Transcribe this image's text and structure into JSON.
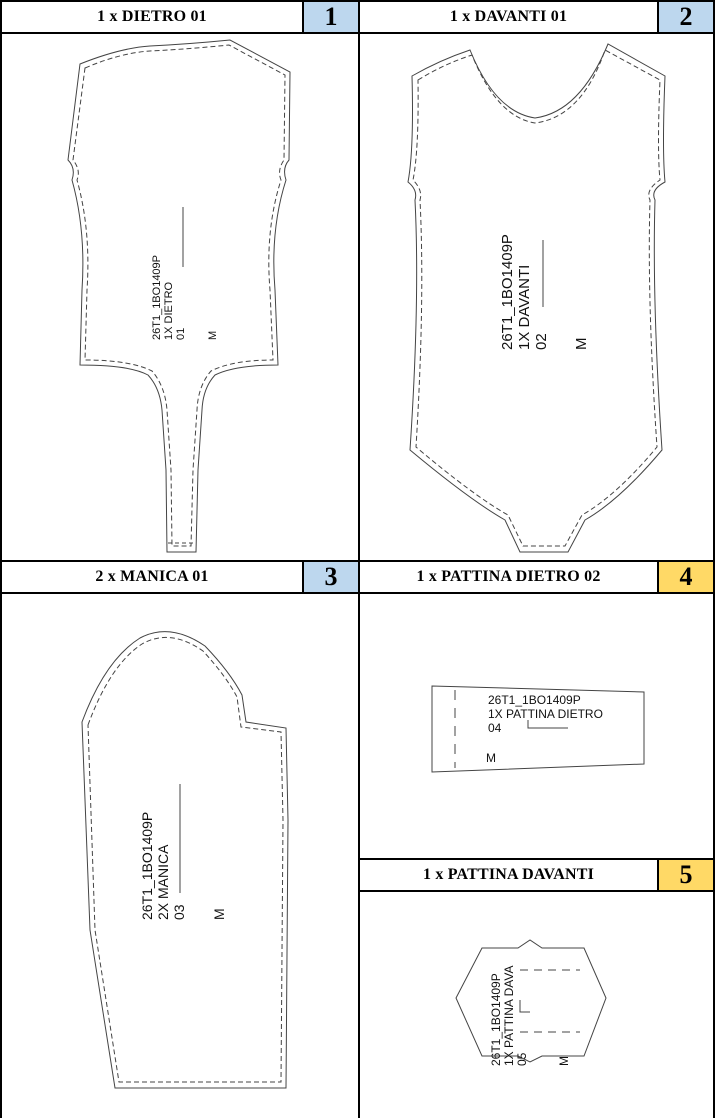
{
  "panels": [
    {
      "title": "1 x DIETRO 01",
      "number": "1",
      "badge_color": "#bdd7ee",
      "piece": {
        "code": "26T1_1BO1409P",
        "name": "1X DIETRO",
        "index": "01",
        "size": "M"
      }
    },
    {
      "title": "1 x DAVANTI 01",
      "number": "2",
      "badge_color": "#bdd7ee",
      "piece": {
        "code": "26T1_1BO1409P",
        "name": "1X DAVANTI",
        "index": "02",
        "size": "M"
      }
    },
    {
      "title": "2 x MANICA 01",
      "number": "3",
      "badge_color": "#bdd7ee",
      "piece": {
        "code": "26T1_1BO1409P",
        "name": "2X MANICA",
        "index": "03",
        "size": "M"
      }
    },
    {
      "title": "1 x PATTINA DIETRO 02",
      "number": "4",
      "badge_color": "#ffd966",
      "piece": {
        "code": "26T1_1BO1409P",
        "name": "1X PATTINA DIETRO",
        "index": "04",
        "size": "M"
      }
    },
    {
      "title": "1 x PATTINA DAVANTI",
      "number": "5",
      "badge_color": "#ffd966",
      "piece": {
        "code": "26T1_1BO1409P",
        "name": "1X PATTINA DAVA",
        "index": "05",
        "size": "M"
      }
    }
  ]
}
